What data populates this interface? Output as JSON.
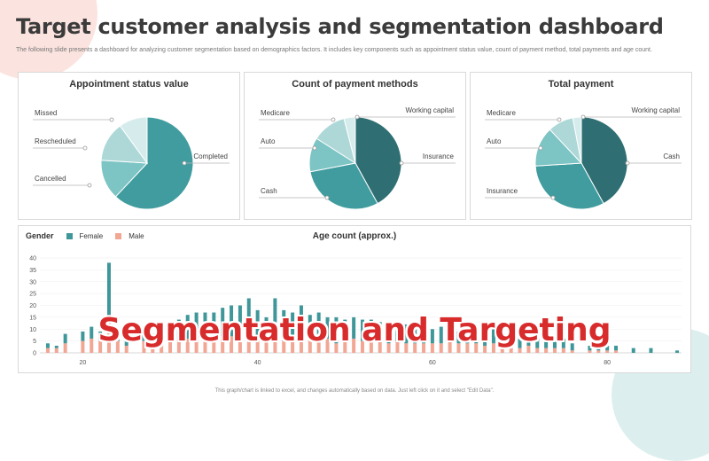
{
  "title": "Target customer analysis and segmentation dashboard",
  "description": "The following slide presents a dashboard for analyzing customer segmentation based on demographics factors. It includes key components such as appointment status value, count of payment method, total payments and age count.",
  "overlay_text": "Segmentation and Targeting",
  "footer": "This graph/chart is linked to excel, and changes automatically based on data. Just left click on it and select \"Edit Data\".",
  "colors": {
    "dark_teal": "#2f6f73",
    "teal": "#419c9f",
    "mid_teal": "#7dc4c4",
    "light_teal": "#add8d7",
    "pale_teal": "#d6ecec",
    "female": "#3f979a",
    "male": "#f2a694"
  },
  "chart_data": [
    {
      "type": "pie",
      "title": "Appointment status value",
      "labels": [
        "Completed",
        "Cancelled",
        "Rescheduled",
        "Missed"
      ],
      "values": [
        62,
        14,
        14,
        10
      ]
    },
    {
      "type": "pie",
      "title": "Count of payment methods",
      "labels": [
        "Insurance",
        "Cash",
        "Auto",
        "Medicare",
        "Working capital"
      ],
      "values": [
        42,
        30,
        12,
        12,
        4
      ]
    },
    {
      "type": "pie",
      "title": "Total payment",
      "labels": [
        "Cash",
        "Insurance",
        "Auto",
        "Medicare",
        "Working capital"
      ],
      "values": [
        42,
        32,
        14,
        9,
        3
      ]
    },
    {
      "type": "bar",
      "stacked": true,
      "title": "Age count (approx.)",
      "legend_title": "Gender",
      "x": [
        16,
        17,
        18,
        19,
        20,
        21,
        22,
        23,
        24,
        25,
        26,
        27,
        28,
        29,
        30,
        31,
        32,
        33,
        34,
        35,
        36,
        37,
        38,
        39,
        40,
        41,
        42,
        43,
        44,
        45,
        46,
        47,
        48,
        49,
        50,
        51,
        52,
        53,
        54,
        55,
        56,
        57,
        58,
        59,
        60,
        61,
        62,
        63,
        64,
        65,
        66,
        67,
        68,
        69,
        70,
        71,
        72,
        73,
        74,
        75,
        76,
        77,
        78,
        79,
        80,
        81,
        82,
        83,
        84,
        85,
        86,
        87,
        88
      ],
      "series": [
        {
          "name": "Female",
          "values": [
            2,
            1,
            4,
            0,
            4,
            5,
            4,
            22,
            3,
            3,
            0,
            4,
            3,
            5,
            5,
            8,
            10,
            11,
            12,
            11,
            12,
            13,
            10,
            16,
            12,
            9,
            17,
            13,
            11,
            14,
            10,
            11,
            9,
            11,
            9,
            9,
            9,
            9,
            8,
            9,
            8,
            8,
            9,
            7,
            6,
            7,
            6,
            5,
            6,
            6,
            3,
            6,
            5,
            3,
            4,
            4,
            4,
            3,
            3,
            4,
            3,
            0,
            2,
            3,
            2,
            2,
            0,
            2,
            0,
            2,
            0,
            0,
            1
          ]
        },
        {
          "name": "Male",
          "values": [
            2,
            2,
            4,
            0,
            5,
            6,
            5,
            16,
            5,
            3,
            0,
            5,
            5,
            5,
            6,
            6,
            6,
            6,
            5,
            6,
            7,
            7,
            10,
            7,
            6,
            6,
            6,
            5,
            6,
            6,
            6,
            6,
            6,
            4,
            5,
            6,
            5,
            5,
            5,
            4,
            5,
            4,
            4,
            4,
            4,
            4,
            5,
            4,
            4,
            4,
            3,
            4,
            3,
            3,
            2,
            3,
            2,
            2,
            2,
            2,
            1,
            0,
            1,
            1,
            1,
            1,
            0,
            0,
            0,
            0,
            0,
            0,
            0
          ]
        }
      ],
      "xticks": [
        "20",
        "40",
        "60",
        "80"
      ],
      "yticks": [
        "0",
        "5",
        "10",
        "15",
        "20",
        "25",
        "30",
        "35",
        "40"
      ],
      "ylim": [
        0,
        40
      ]
    }
  ]
}
